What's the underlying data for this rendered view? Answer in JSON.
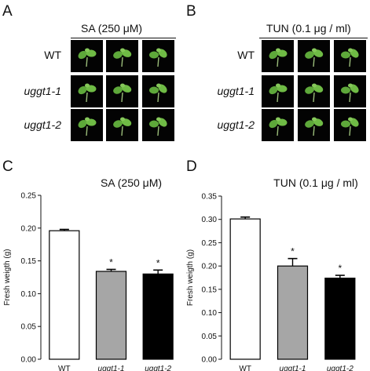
{
  "panels": {
    "A": {
      "letter": "A",
      "title": "SA (250 μM)"
    },
    "B": {
      "letter": "B",
      "title": "TUN (0.1 μg / ml)"
    },
    "C": {
      "letter": "C"
    },
    "D": {
      "letter": "D"
    }
  },
  "rows": [
    "WT",
    "uggt1-1",
    "uggt1-2"
  ],
  "colors": {
    "wt": "#ffffff",
    "uggt1_1": "#a6a6a6",
    "uggt1_2": "#000000",
    "plant": "#5ea83a",
    "tile_bg": "#030303"
  },
  "chart_data": [
    {
      "type": "bar",
      "title": "SA (250 μM)",
      "categories": [
        "WT",
        "uggt1-1",
        "uggt1-2"
      ],
      "values": [
        0.196,
        0.134,
        0.13
      ],
      "errors": [
        0.002,
        0.003,
        0.006
      ],
      "significance": [
        "",
        "*",
        "*"
      ],
      "ylabel": "Fresh weigth (g)",
      "xlabel": "",
      "ylim": [
        0,
        0.25
      ],
      "yticks": [
        "0.00",
        "0.05",
        "0.10",
        "0.15",
        "0.20",
        "0.25"
      ],
      "grid": false
    },
    {
      "type": "bar",
      "title": "TUN (0.1 μg / ml)",
      "categories": [
        "WT",
        "uggt1-1",
        "uggt1-2"
      ],
      "values": [
        0.301,
        0.2,
        0.174
      ],
      "errors": [
        0.004,
        0.016,
        0.006
      ],
      "significance": [
        "",
        "*",
        "*"
      ],
      "ylabel": "Fresh weigth (g)",
      "xlabel": "",
      "ylim": [
        0,
        0.35
      ],
      "yticks": [
        "0.00",
        "0.05",
        "0.10",
        "0.15",
        "0.20",
        "0.25",
        "0.30",
        "0.35"
      ],
      "grid": false
    }
  ]
}
